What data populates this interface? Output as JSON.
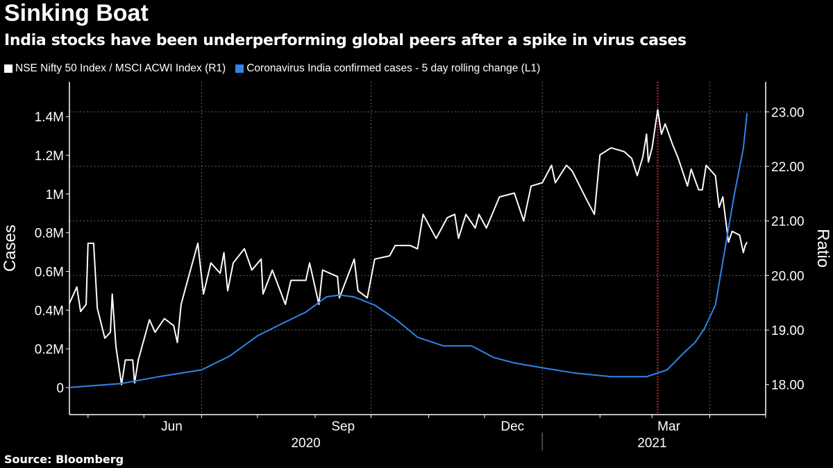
{
  "header": {
    "title": "Sinking Boat",
    "subtitle": "India stocks have been underperforming global peers after a spike in virus cases"
  },
  "footer": {
    "source": "Source: Bloomberg"
  },
  "chart_data": {
    "type": "line",
    "title": "Sinking Boat",
    "subtitle": "India stocks have been underperforming global peers after a spike in virus cases",
    "x_unit": "days from start of plotted range (late Apr 2020 to mid Apr 2021)",
    "x_range": [
      0,
      374
    ],
    "x_ticks": [
      {
        "label": "Jun",
        "day": 55
      },
      {
        "label": "Sep",
        "day": 147
      },
      {
        "label": "Dec",
        "day": 238
      },
      {
        "label": "Mar",
        "day": 322
      }
    ],
    "quarter_gridlines_days": [
      71,
      162,
      254,
      344
    ],
    "month_tick_days": [
      10,
      40,
      71,
      101,
      132,
      162,
      193,
      223,
      254,
      285,
      313,
      344,
      374
    ],
    "years": [
      {
        "label": "2020",
        "day": 127
      },
      {
        "label": "2021",
        "day": 313
      }
    ],
    "year_boundary_day": 254,
    "marker_day": 316,
    "left_axis": {
      "label": "Cases",
      "range": [
        -140000,
        1580000
      ],
      "ticks": [
        0,
        200000,
        400000,
        600000,
        800000,
        1000000,
        1200000,
        1400000
      ],
      "tick_labels": [
        "0",
        "0.2M",
        "0.4M",
        "0.6M",
        "0.8M",
        "1M",
        "1.2M",
        "1.4M"
      ]
    },
    "right_axis": {
      "label": "Ratio",
      "range": [
        17.45,
        23.55
      ],
      "ticks": [
        18,
        19,
        20,
        21,
        22,
        23
      ],
      "tick_labels": [
        "18.00",
        "19.00",
        "20.00",
        "21.00",
        "22.00",
        "23.00"
      ]
    },
    "series": [
      {
        "name": "NSE Nifty 50 Index / MSCI ACWI Index (R1)",
        "axis": "right",
        "color": "#ffffff",
        "points": [
          [
            0,
            19.49
          ],
          [
            4,
            19.79
          ],
          [
            6,
            19.34
          ],
          [
            9,
            19.47
          ],
          [
            10,
            20.59
          ],
          [
            13,
            20.59
          ],
          [
            15,
            19.4
          ],
          [
            19,
            18.85
          ],
          [
            22,
            18.96
          ],
          [
            23,
            19.66
          ],
          [
            25,
            18.7
          ],
          [
            28,
            18.0
          ],
          [
            30,
            18.45
          ],
          [
            34,
            18.45
          ],
          [
            35,
            18.03
          ],
          [
            37,
            18.45
          ],
          [
            43,
            19.19
          ],
          [
            46,
            18.96
          ],
          [
            51,
            19.21
          ],
          [
            56,
            19.08
          ],
          [
            58,
            18.77
          ],
          [
            60,
            19.47
          ],
          [
            63,
            19.85
          ],
          [
            69,
            20.59
          ],
          [
            72,
            19.66
          ],
          [
            76,
            20.23
          ],
          [
            81,
            20.04
          ],
          [
            83,
            20.42
          ],
          [
            85,
            19.72
          ],
          [
            88,
            20.23
          ],
          [
            94,
            20.49
          ],
          [
            98,
            20.1
          ],
          [
            103,
            20.3
          ],
          [
            104,
            19.66
          ],
          [
            109,
            20.1
          ],
          [
            116,
            19.47
          ],
          [
            119,
            19.91
          ],
          [
            127,
            19.91
          ],
          [
            129,
            20.23
          ],
          [
            134,
            19.47
          ],
          [
            136,
            20.1
          ],
          [
            144,
            19.98
          ],
          [
            145,
            19.59
          ],
          [
            153,
            20.3
          ],
          [
            155,
            19.72
          ],
          [
            160,
            19.59
          ],
          [
            164,
            20.3
          ],
          [
            172,
            20.36
          ],
          [
            175,
            20.55
          ],
          [
            183,
            20.55
          ],
          [
            187,
            20.49
          ],
          [
            190,
            21.12
          ],
          [
            197,
            20.68
          ],
          [
            203,
            21.06
          ],
          [
            207,
            21.12
          ],
          [
            209,
            20.68
          ],
          [
            213,
            21.12
          ],
          [
            218,
            20.87
          ],
          [
            220,
            21.12
          ],
          [
            224,
            20.87
          ],
          [
            231,
            21.44
          ],
          [
            239,
            21.51
          ],
          [
            244,
            21.0
          ],
          [
            248,
            21.64
          ],
          [
            254,
            21.7
          ],
          [
            259,
            22.02
          ],
          [
            261,
            21.7
          ],
          [
            267,
            22.02
          ],
          [
            270,
            21.92
          ],
          [
            278,
            21.38
          ],
          [
            282,
            21.12
          ],
          [
            285,
            22.21
          ],
          [
            291,
            22.34
          ],
          [
            298,
            22.27
          ],
          [
            302,
            22.15
          ],
          [
            305,
            21.83
          ],
          [
            308,
            22.17
          ],
          [
            310,
            22.59
          ],
          [
            311,
            22.08
          ],
          [
            313,
            22.34
          ],
          [
            316,
            23.04
          ],
          [
            318,
            22.59
          ],
          [
            320,
            22.78
          ],
          [
            324,
            22.4
          ],
          [
            327,
            22.15
          ],
          [
            332,
            21.64
          ],
          [
            334,
            21.95
          ],
          [
            338,
            21.57
          ],
          [
            340,
            21.57
          ],
          [
            342,
            22.02
          ],
          [
            347,
            21.83
          ],
          [
            349,
            21.25
          ],
          [
            351,
            21.44
          ],
          [
            354,
            20.61
          ],
          [
            356,
            20.81
          ],
          [
            360,
            20.74
          ],
          [
            362,
            20.42
          ],
          [
            363,
            20.55
          ],
          [
            364,
            20.61
          ]
        ]
      },
      {
        "name": "Coronavirus India confirmed cases - 5 day rolling change (L1)",
        "axis": "left",
        "color": "#2e86e8",
        "points": [
          [
            0,
            0
          ],
          [
            28,
            21000
          ],
          [
            48,
            56000
          ],
          [
            71,
            91000
          ],
          [
            86,
            162000
          ],
          [
            101,
            267000
          ],
          [
            112,
            320000
          ],
          [
            127,
            390000
          ],
          [
            138,
            468000
          ],
          [
            145,
            478000
          ],
          [
            153,
            468000
          ],
          [
            164,
            426000
          ],
          [
            175,
            355000
          ],
          [
            187,
            260000
          ],
          [
            201,
            215000
          ],
          [
            216,
            215000
          ],
          [
            228,
            155000
          ],
          [
            239,
            127000
          ],
          [
            254,
            102000
          ],
          [
            272,
            74000
          ],
          [
            291,
            56000
          ],
          [
            310,
            56000
          ],
          [
            321,
            91000
          ],
          [
            330,
            179000
          ],
          [
            336,
            232000
          ],
          [
            341,
            303000
          ],
          [
            347,
            426000
          ],
          [
            352,
            707000
          ],
          [
            357,
            989000
          ],
          [
            362,
            1235000
          ],
          [
            364,
            1418000
          ]
        ]
      }
    ],
    "legend_placement": "top-left",
    "grid": true
  }
}
